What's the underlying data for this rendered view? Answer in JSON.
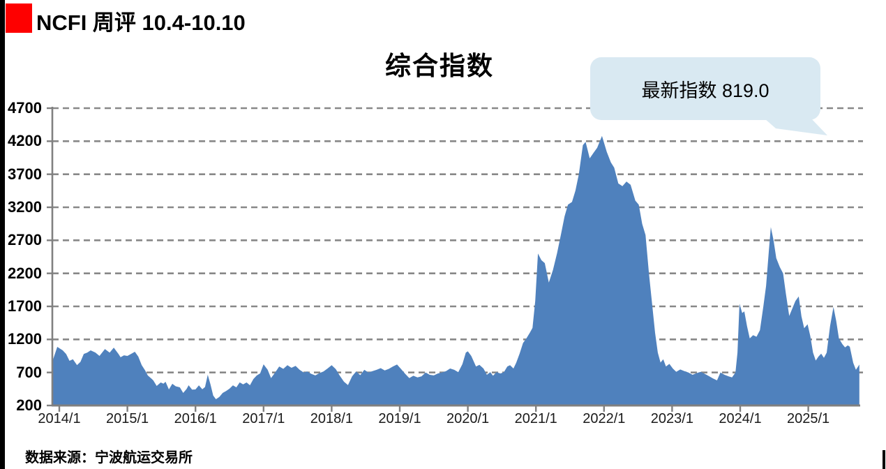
{
  "header": {
    "title": "NCFI 周评 10.4-10.10"
  },
  "chart": {
    "title": "综合指数",
    "callout_text": "最新指数 819.0",
    "footer": "数据来源：宁波航运交易所"
  },
  "colors": {
    "logo_red": "#fe0000",
    "area_fill": "#4f81bd",
    "callout_bg": "#d9e9f2",
    "gridline": "#888888",
    "axis": "#808080"
  },
  "chart_data": {
    "type": "area",
    "title": "综合指数",
    "series_name": "NCFI 综合指数",
    "latest_value": 819.0,
    "callout_text": "最新指数 819.0",
    "x_unit": "decimal year (2014.0 = 2014/1), weekly index",
    "xlim": [
      2013.9,
      2025.83
    ],
    "ylim": [
      200,
      4700
    ],
    "y_ticks": [
      200,
      700,
      1200,
      1700,
      2200,
      2700,
      3200,
      3700,
      4200,
      4700
    ],
    "x_tick_labels": [
      "2014/1",
      "2015/1",
      "2016/1",
      "2017/1",
      "2018/1",
      "2019/1",
      "2020/1",
      "2021/1",
      "2022/1",
      "2023/1",
      "2024/1",
      "2025/1"
    ],
    "grid": "dashed horizontal",
    "legend": "none",
    "points": [
      [
        2013.9,
        870
      ],
      [
        2013.97,
        1087
      ],
      [
        2014.05,
        1034
      ],
      [
        2014.1,
        980
      ],
      [
        2014.15,
        876
      ],
      [
        2014.2,
        900
      ],
      [
        2014.26,
        812
      ],
      [
        2014.31,
        860
      ],
      [
        2014.36,
        981
      ],
      [
        2014.41,
        1000
      ],
      [
        2014.46,
        1034
      ],
      [
        2014.53,
        1002
      ],
      [
        2014.59,
        950
      ],
      [
        2014.67,
        1055
      ],
      [
        2014.74,
        1000
      ],
      [
        2014.8,
        1076
      ],
      [
        2014.87,
        980
      ],
      [
        2014.9,
        930
      ],
      [
        2014.95,
        960
      ],
      [
        2015.0,
        950
      ],
      [
        2015.06,
        985
      ],
      [
        2015.11,
        1013
      ],
      [
        2015.16,
        940
      ],
      [
        2015.21,
        812
      ],
      [
        2015.26,
        730
      ],
      [
        2015.3,
        654
      ],
      [
        2015.35,
        610
      ],
      [
        2015.38,
        580
      ],
      [
        2015.43,
        496
      ],
      [
        2015.49,
        549
      ],
      [
        2015.53,
        530
      ],
      [
        2015.56,
        559
      ],
      [
        2015.61,
        443
      ],
      [
        2015.66,
        528
      ],
      [
        2015.71,
        490
      ],
      [
        2015.77,
        475
      ],
      [
        2015.82,
        390
      ],
      [
        2015.87,
        450
      ],
      [
        2015.9,
        506
      ],
      [
        2015.95,
        440
      ],
      [
        2016.0,
        443
      ],
      [
        2016.05,
        505
      ],
      [
        2016.1,
        445
      ],
      [
        2016.14,
        480
      ],
      [
        2016.18,
        665
      ],
      [
        2016.22,
        520
      ],
      [
        2016.26,
        350
      ],
      [
        2016.3,
        295
      ],
      [
        2016.35,
        330
      ],
      [
        2016.4,
        390
      ],
      [
        2016.45,
        420
      ],
      [
        2016.5,
        455
      ],
      [
        2016.55,
        505
      ],
      [
        2016.6,
        475
      ],
      [
        2016.65,
        550
      ],
      [
        2016.7,
        520
      ],
      [
        2016.75,
        549
      ],
      [
        2016.8,
        506
      ],
      [
        2016.85,
        600
      ],
      [
        2016.9,
        654
      ],
      [
        2016.95,
        686
      ],
      [
        2017.0,
        823
      ],
      [
        2017.06,
        740
      ],
      [
        2017.11,
        615
      ],
      [
        2017.17,
        700
      ],
      [
        2017.23,
        790
      ],
      [
        2017.29,
        755
      ],
      [
        2017.35,
        810
      ],
      [
        2017.41,
        770
      ],
      [
        2017.47,
        800
      ],
      [
        2017.53,
        740
      ],
      [
        2017.59,
        700
      ],
      [
        2017.64,
        715
      ],
      [
        2017.7,
        680
      ],
      [
        2017.76,
        655
      ],
      [
        2017.82,
        690
      ],
      [
        2017.88,
        715
      ],
      [
        2017.94,
        760
      ],
      [
        2018.0,
        810
      ],
      [
        2018.06,
        750
      ],
      [
        2018.12,
        650
      ],
      [
        2018.18,
        560
      ],
      [
        2018.24,
        510
      ],
      [
        2018.3,
        640
      ],
      [
        2018.36,
        715
      ],
      [
        2018.42,
        660
      ],
      [
        2018.48,
        740
      ],
      [
        2018.54,
        700
      ],
      [
        2018.6,
        720
      ],
      [
        2018.66,
        740
      ],
      [
        2018.72,
        765
      ],
      [
        2018.78,
        730
      ],
      [
        2018.84,
        755
      ],
      [
        2018.9,
        790
      ],
      [
        2018.96,
        820
      ],
      [
        2019.02,
        750
      ],
      [
        2019.08,
        680
      ],
      [
        2019.14,
        615
      ],
      [
        2019.2,
        650
      ],
      [
        2019.26,
        625
      ],
      [
        2019.32,
        640
      ],
      [
        2019.38,
        700
      ],
      [
        2019.44,
        665
      ],
      [
        2019.5,
        655
      ],
      [
        2019.56,
        685
      ],
      [
        2019.62,
        700
      ],
      [
        2019.68,
        720
      ],
      [
        2019.74,
        760
      ],
      [
        2019.8,
        740
      ],
      [
        2019.86,
        705
      ],
      [
        2019.92,
        825
      ],
      [
        2019.97,
        1000
      ],
      [
        2020.0,
        1020
      ],
      [
        2020.05,
        950
      ],
      [
        2020.12,
        790
      ],
      [
        2020.17,
        815
      ],
      [
        2020.23,
        760
      ],
      [
        2020.28,
        665
      ],
      [
        2020.33,
        705
      ],
      [
        2020.37,
        650
      ],
      [
        2020.42,
        705
      ],
      [
        2020.48,
        685
      ],
      [
        2020.53,
        705
      ],
      [
        2020.58,
        790
      ],
      [
        2020.62,
        810
      ],
      [
        2020.67,
        760
      ],
      [
        2020.71,
        845
      ],
      [
        2020.76,
        985
      ],
      [
        2020.81,
        1145
      ],
      [
        2020.86,
        1215
      ],
      [
        2020.91,
        1300
      ],
      [
        2020.95,
        1375
      ],
      [
        2020.99,
        1780
      ],
      [
        2021.03,
        2500
      ],
      [
        2021.08,
        2400
      ],
      [
        2021.13,
        2355
      ],
      [
        2021.19,
        2060
      ],
      [
        2021.25,
        2250
      ],
      [
        2021.31,
        2505
      ],
      [
        2021.37,
        2800
      ],
      [
        2021.42,
        3060
      ],
      [
        2021.47,
        3240
      ],
      [
        2021.53,
        3280
      ],
      [
        2021.58,
        3450
      ],
      [
        2021.63,
        3700
      ],
      [
        2021.69,
        4140
      ],
      [
        2021.73,
        4190
      ],
      [
        2021.79,
        3940
      ],
      [
        2021.85,
        4030
      ],
      [
        2021.9,
        4100
      ],
      [
        2021.97,
        4280
      ],
      [
        2022.04,
        4040
      ],
      [
        2022.1,
        3880
      ],
      [
        2022.15,
        3800
      ],
      [
        2022.21,
        3560
      ],
      [
        2022.27,
        3520
      ],
      [
        2022.33,
        3590
      ],
      [
        2022.39,
        3540
      ],
      [
        2022.46,
        3300
      ],
      [
        2022.51,
        3240
      ],
      [
        2022.56,
        2950
      ],
      [
        2022.61,
        2780
      ],
      [
        2022.66,
        2200
      ],
      [
        2022.71,
        1700
      ],
      [
        2022.75,
        1300
      ],
      [
        2022.79,
        1000
      ],
      [
        2022.83,
        850
      ],
      [
        2022.87,
        900
      ],
      [
        2022.91,
        790
      ],
      [
        2022.96,
        830
      ],
      [
        2023.01,
        760
      ],
      [
        2023.06,
        710
      ],
      [
        2023.12,
        745
      ],
      [
        2023.18,
        720
      ],
      [
        2023.24,
        700
      ],
      [
        2023.3,
        665
      ],
      [
        2023.36,
        690
      ],
      [
        2023.42,
        710
      ],
      [
        2023.48,
        680
      ],
      [
        2023.54,
        645
      ],
      [
        2023.6,
        610
      ],
      [
        2023.66,
        580
      ],
      [
        2023.71,
        700
      ],
      [
        2023.77,
        665
      ],
      [
        2023.83,
        640
      ],
      [
        2023.88,
        625
      ],
      [
        2023.93,
        700
      ],
      [
        2023.96,
        1000
      ],
      [
        2023.99,
        1740
      ],
      [
        2024.03,
        1600
      ],
      [
        2024.06,
        1625
      ],
      [
        2024.1,
        1400
      ],
      [
        2024.14,
        1215
      ],
      [
        2024.19,
        1265
      ],
      [
        2024.24,
        1240
      ],
      [
        2024.29,
        1340
      ],
      [
        2024.34,
        1700
      ],
      [
        2024.38,
        2010
      ],
      [
        2024.42,
        2530
      ],
      [
        2024.45,
        2900
      ],
      [
        2024.49,
        2700
      ],
      [
        2024.53,
        2430
      ],
      [
        2024.58,
        2300
      ],
      [
        2024.63,
        2200
      ],
      [
        2024.67,
        1900
      ],
      [
        2024.72,
        1555
      ],
      [
        2024.77,
        1680
      ],
      [
        2024.81,
        1780
      ],
      [
        2024.86,
        1850
      ],
      [
        2024.9,
        1550
      ],
      [
        2024.94,
        1370
      ],
      [
        2024.99,
        1430
      ],
      [
        2025.03,
        1250
      ],
      [
        2025.07,
        1000
      ],
      [
        2025.11,
        880
      ],
      [
        2025.15,
        940
      ],
      [
        2025.19,
        985
      ],
      [
        2025.23,
        920
      ],
      [
        2025.27,
        1000
      ],
      [
        2025.32,
        1400
      ],
      [
        2025.37,
        1690
      ],
      [
        2025.41,
        1480
      ],
      [
        2025.45,
        1215
      ],
      [
        2025.5,
        1130
      ],
      [
        2025.54,
        1080
      ],
      [
        2025.58,
        1110
      ],
      [
        2025.61,
        1090
      ],
      [
        2025.66,
        845
      ],
      [
        2025.7,
        740
      ],
      [
        2025.75,
        819
      ]
    ]
  }
}
